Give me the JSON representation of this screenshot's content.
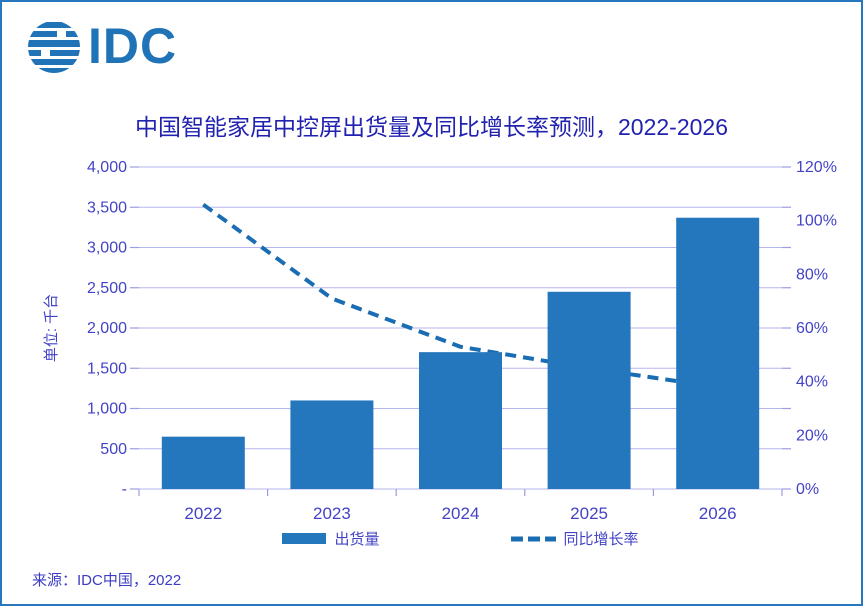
{
  "logo": {
    "text": "IDC"
  },
  "title": "中国智能家居中控屏出货量及同比增长率预测，2022-2026",
  "y_axis_title": "单位: 千台",
  "source": "来源：IDC中国，2022",
  "colors": {
    "bar": "#2577BD",
    "line": "#1B6DB3",
    "grid": "#B6B6EE",
    "tick": "#9C9CE0",
    "axis_text": "#4343C7",
    "title_text": "#2222B0",
    "source_text": "#3C3CC4",
    "border": "#2677BE",
    "logo": "#2173B8"
  },
  "chart_data": {
    "type": "bar+line combo",
    "title": "中国智能家居中控屏出货量及同比增长率预测，2022-2026",
    "categories": [
      "2022",
      "2023",
      "2024",
      "2025",
      "2026"
    ],
    "series": [
      {
        "name": "出货量",
        "type": "bar",
        "axis": "left",
        "unit": "千台",
        "values": [
          650,
          1100,
          1700,
          2450,
          3370
        ]
      },
      {
        "name": "同比增长率",
        "type": "line",
        "axis": "right",
        "unit": "%",
        "values": [
          106,
          71,
          53,
          45,
          38
        ]
      }
    ],
    "left_axis": {
      "title": "单位: 千台",
      "min": 0,
      "max": 4000,
      "step": 500,
      "tick_labels": [
        "-",
        "500",
        "1,000",
        "1,500",
        "2,000",
        "2,500",
        "3,000",
        "3,500",
        "4,000"
      ]
    },
    "right_axis": {
      "min": 0,
      "max": 120,
      "step": 20,
      "tick_labels": [
        "0%",
        "20%",
        "40%",
        "60%",
        "80%",
        "100%",
        "120%"
      ]
    },
    "grid": true,
    "line_style": "dashed",
    "line_drawn_behind_bars": true,
    "legend_position": "bottom"
  }
}
